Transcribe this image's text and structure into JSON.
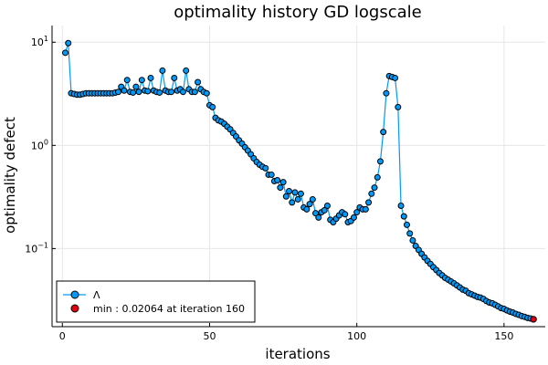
{
  "chart_data": {
    "type": "line",
    "title": "optimality history GD logscale",
    "xlabel": "iterations",
    "ylabel": "optimality defect",
    "xlim": [
      -3.5,
      164
    ],
    "ylim": [
      0.0175,
      14.5
    ],
    "yscale": "log",
    "grid": true,
    "legend_position": "bottom-left",
    "x_ticks": [
      0,
      50,
      100,
      150
    ],
    "x_tick_labels": [
      "0",
      "50",
      "100",
      "150"
    ],
    "y_ticks": [
      10,
      1,
      0.1
    ],
    "y_tick_labels": [
      {
        "base": "10",
        "exp": "1"
      },
      {
        "base": "10",
        "exp": "0"
      },
      {
        "base": "10",
        "exp": "−1"
      }
    ],
    "colors": {
      "series": "#009AFA",
      "min_marker": "#E3000F",
      "marker_edge": "#000000",
      "grid": "#e6e6e6"
    },
    "series": [
      {
        "name": "Λ",
        "x": [
          1,
          2,
          3,
          4,
          5,
          6,
          7,
          8,
          9,
          10,
          11,
          12,
          13,
          14,
          15,
          16,
          17,
          18,
          19,
          20,
          21,
          22,
          23,
          24,
          25,
          26,
          27,
          28,
          29,
          30,
          31,
          32,
          33,
          34,
          35,
          36,
          37,
          38,
          39,
          40,
          41,
          42,
          43,
          44,
          45,
          46,
          47,
          48,
          49,
          50,
          51,
          52,
          53,
          54,
          55,
          56,
          57,
          58,
          59,
          60,
          61,
          62,
          63,
          64,
          65,
          66,
          67,
          68,
          69,
          70,
          71,
          72,
          73,
          74,
          75,
          76,
          77,
          78,
          79,
          80,
          81,
          82,
          83,
          84,
          85,
          86,
          87,
          88,
          89,
          90,
          91,
          92,
          93,
          94,
          95,
          96,
          97,
          98,
          99,
          100,
          101,
          102,
          103,
          104,
          105,
          106,
          107,
          108,
          109,
          110,
          111,
          112,
          113,
          114,
          115,
          116,
          117,
          118,
          119,
          120,
          121,
          122,
          123,
          124,
          125,
          126,
          127,
          128,
          129,
          130,
          131,
          132,
          133,
          134,
          135,
          136,
          137,
          138,
          139,
          140,
          141,
          142,
          143,
          144,
          145,
          146,
          147,
          148,
          149,
          150,
          151,
          152,
          153,
          154,
          155,
          156,
          157,
          158,
          159,
          160
        ],
        "y": [
          7.9,
          9.8,
          3.2,
          3.15,
          3.1,
          3.1,
          3.15,
          3.2,
          3.2,
          3.2,
          3.2,
          3.2,
          3.2,
          3.2,
          3.2,
          3.2,
          3.2,
          3.25,
          3.3,
          3.7,
          3.4,
          4.3,
          3.3,
          3.25,
          3.7,
          3.3,
          4.3,
          3.4,
          3.35,
          4.5,
          3.4,
          3.3,
          3.25,
          5.3,
          3.4,
          3.3,
          3.3,
          4.5,
          3.4,
          3.5,
          3.3,
          5.3,
          3.5,
          3.3,
          3.3,
          4.1,
          3.5,
          3.3,
          3.2,
          2.45,
          2.35,
          1.85,
          1.75,
          1.7,
          1.62,
          1.52,
          1.43,
          1.32,
          1.22,
          1.12,
          1.04,
          0.96,
          0.89,
          0.82,
          0.75,
          0.69,
          0.65,
          0.62,
          0.6,
          0.52,
          0.52,
          0.45,
          0.46,
          0.39,
          0.44,
          0.32,
          0.36,
          0.28,
          0.35,
          0.3,
          0.34,
          0.25,
          0.24,
          0.27,
          0.3,
          0.22,
          0.2,
          0.225,
          0.235,
          0.26,
          0.19,
          0.18,
          0.195,
          0.21,
          0.225,
          0.215,
          0.18,
          0.185,
          0.2,
          0.225,
          0.25,
          0.24,
          0.24,
          0.28,
          0.34,
          0.39,
          0.49,
          0.7,
          1.35,
          3.2,
          4.7,
          4.6,
          4.5,
          2.35,
          0.26,
          0.205,
          0.17,
          0.14,
          0.12,
          0.106,
          0.097,
          0.089,
          0.082,
          0.076,
          0.071,
          0.066,
          0.062,
          0.058,
          0.055,
          0.052,
          0.05,
          0.048,
          0.046,
          0.044,
          0.042,
          0.04,
          0.039,
          0.037,
          0.036,
          0.035,
          0.034,
          0.0335,
          0.0325,
          0.031,
          0.03,
          0.0295,
          0.0285,
          0.0275,
          0.0265,
          0.026,
          0.0252,
          0.0245,
          0.024,
          0.0233,
          0.0228,
          0.0222,
          0.0218,
          0.0213,
          0.021,
          0.02064
        ]
      },
      {
        "name": "min : 0.02064 at iteration 160",
        "x": [
          160
        ],
        "y": [
          0.02064
        ]
      }
    ]
  }
}
